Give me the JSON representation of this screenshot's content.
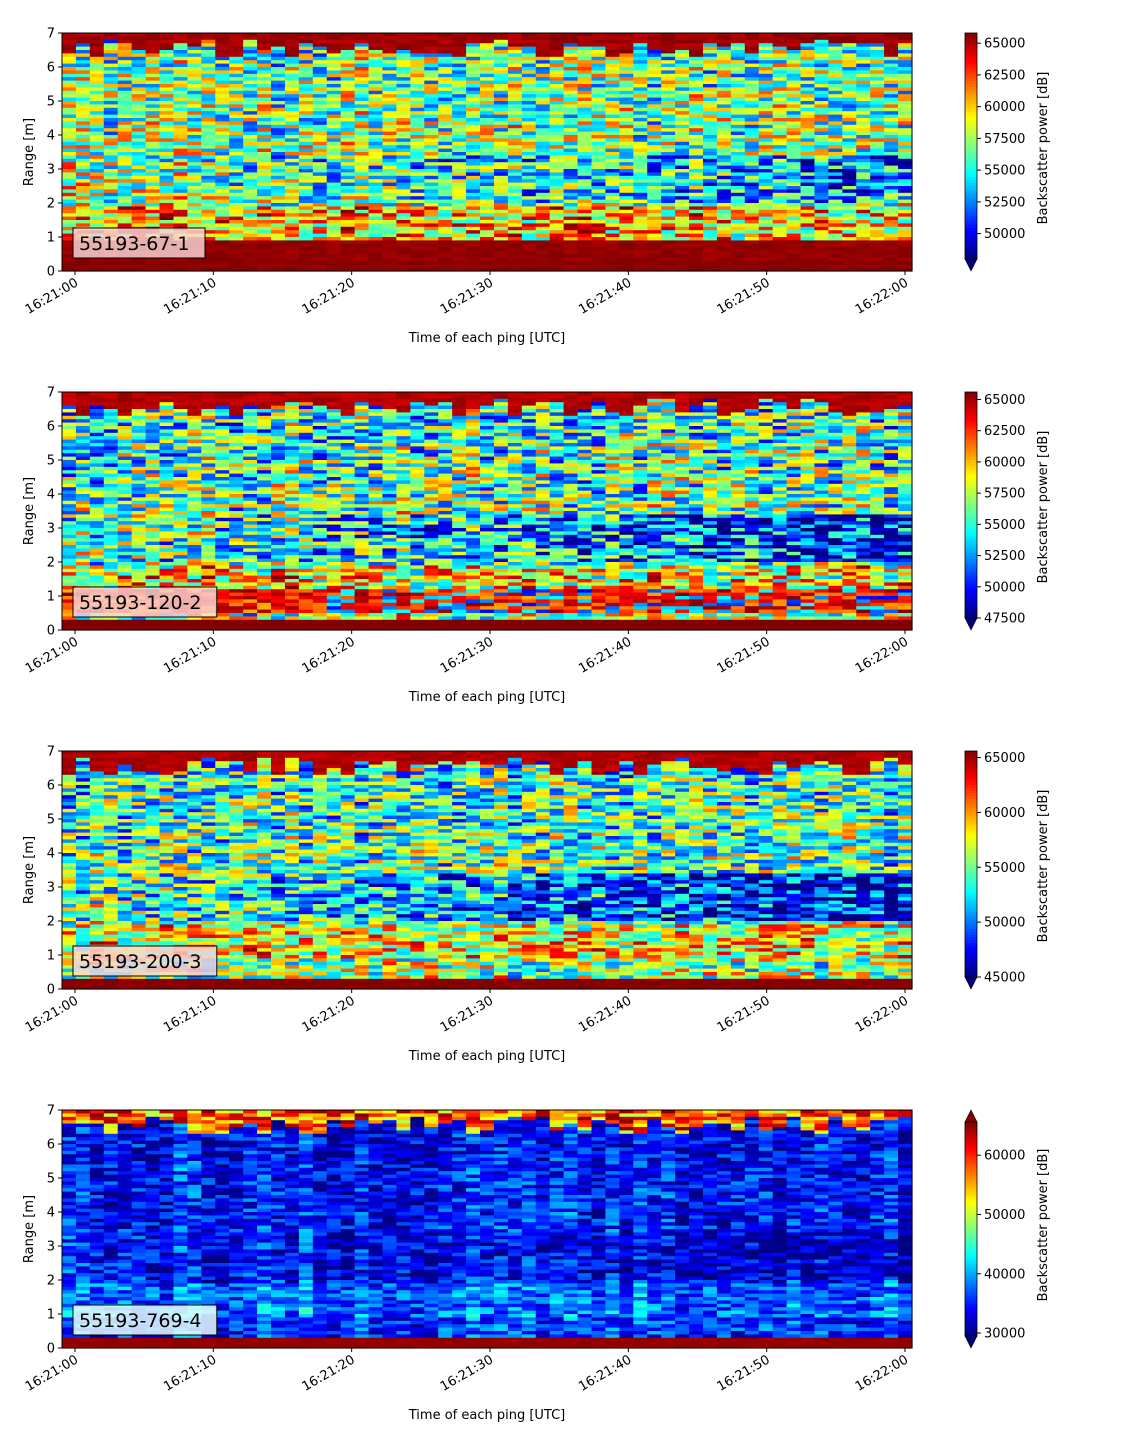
{
  "chart_data": [
    {
      "type": "heatmap",
      "label": "55193-67-1",
      "xlabel": "Time of each ping [UTC]",
      "ylabel": "Range [m]",
      "xticks": [
        "16:21:00",
        "16:21:10",
        "16:21:20",
        "16:21:30",
        "16:21:40",
        "16:21:50",
        "16:22:00"
      ],
      "yticks": [
        "0",
        "1",
        "2",
        "3",
        "4",
        "5",
        "6",
        "7"
      ],
      "ylim": [
        0,
        7
      ],
      "colorbar": {
        "label": "Backscatter power [dB]",
        "ticks": [
          "50000",
          "52500",
          "55000",
          "57500",
          "60000",
          "62500",
          "65000"
        ],
        "range": [
          48000,
          65800
        ],
        "extend": "min"
      }
    },
    {
      "type": "heatmap",
      "label": "55193-120-2",
      "xlabel": "Time of each ping [UTC]",
      "ylabel": "Range [m]",
      "xticks": [
        "16:21:00",
        "16:21:10",
        "16:21:20",
        "16:21:30",
        "16:21:40",
        "16:21:50",
        "16:22:00"
      ],
      "yticks": [
        "0",
        "1",
        "2",
        "3",
        "4",
        "5",
        "6",
        "7"
      ],
      "ylim": [
        0,
        7
      ],
      "colorbar": {
        "label": "Backscatter power [dB]",
        "ticks": [
          "47500",
          "50000",
          "52500",
          "55000",
          "57500",
          "60000",
          "62500",
          "65000"
        ],
        "range": [
          47500,
          65600
        ],
        "extend": "min"
      }
    },
    {
      "type": "heatmap",
      "label": "55193-200-3",
      "xlabel": "Time of each ping [UTC]",
      "ylabel": "Range [m]",
      "xticks": [
        "16:21:00",
        "16:21:10",
        "16:21:20",
        "16:21:30",
        "16:21:40",
        "16:21:50",
        "16:22:00"
      ],
      "yticks": [
        "0",
        "1",
        "2",
        "3",
        "4",
        "5",
        "6",
        "7"
      ],
      "ylim": [
        0,
        7
      ],
      "colorbar": {
        "label": "Backscatter power [dB]",
        "ticks": [
          "45000",
          "50000",
          "55000",
          "60000",
          "65000"
        ],
        "range": [
          45000,
          65600
        ],
        "extend": "min"
      }
    },
    {
      "type": "heatmap",
      "label": "55193-769-4",
      "xlabel": "Time of each ping [UTC]",
      "ylabel": "Range [m]",
      "xticks": [
        "16:21:00",
        "16:21:10",
        "16:21:20",
        "16:21:30",
        "16:21:40",
        "16:21:50",
        "16:22:00"
      ],
      "yticks": [
        "0",
        "1",
        "2",
        "3",
        "4",
        "5",
        "6",
        "7"
      ],
      "ylim": [
        0,
        7
      ],
      "colorbar": {
        "label": "Backscatter power [dB]",
        "ticks": [
          "30000",
          "40000",
          "50000",
          "60000"
        ],
        "range": [
          29500,
          65600
        ],
        "extend": "both"
      }
    }
  ]
}
